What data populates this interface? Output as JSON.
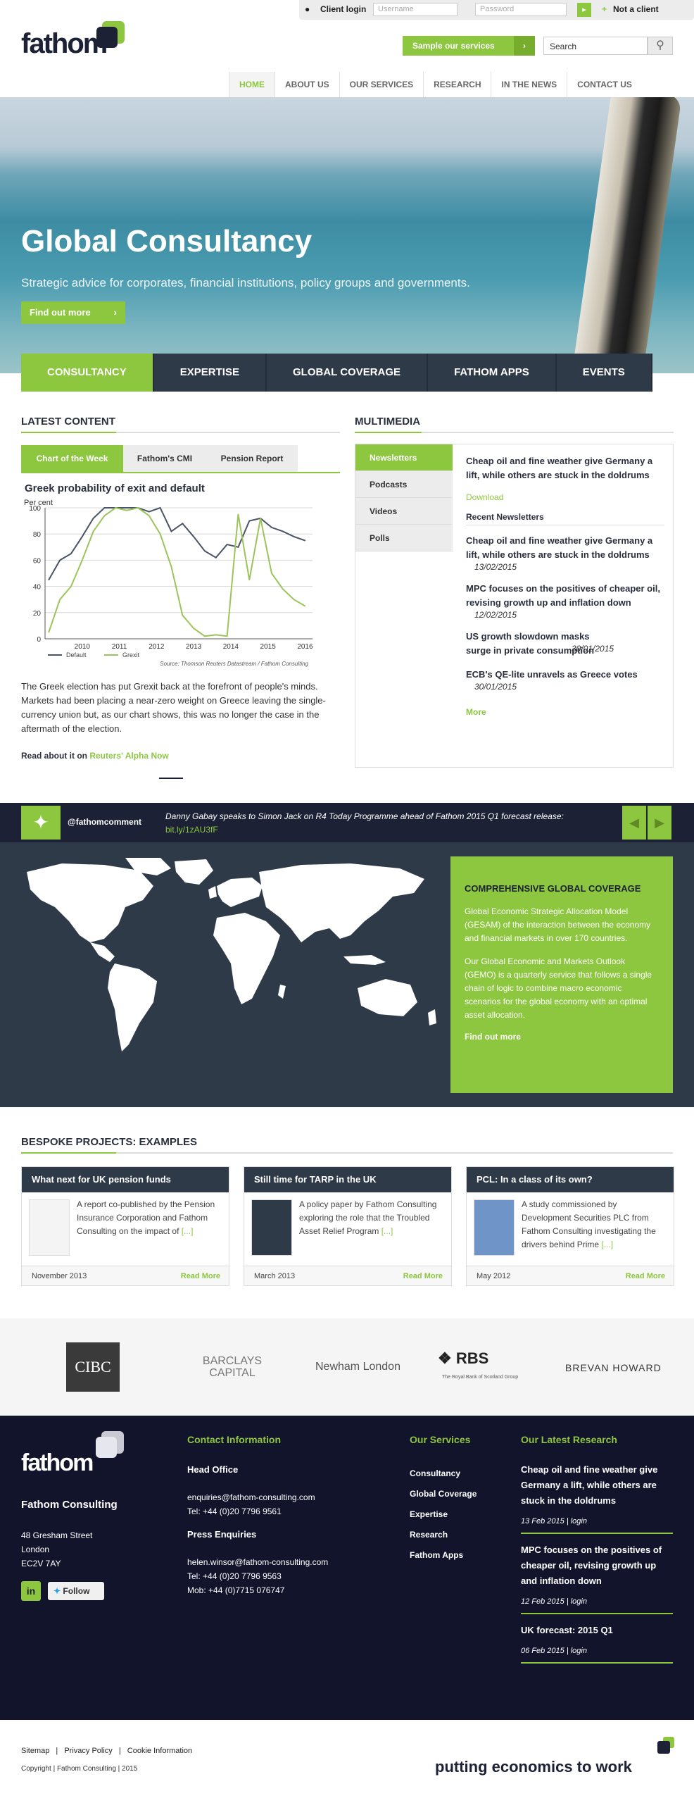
{
  "header": {
    "client_login": "Client login",
    "username_placeholder": "Username",
    "password_placeholder": "Password",
    "not_client": "Not a client",
    "logo": "fathom",
    "sample_button": "Sample our services",
    "search_value": "Search",
    "nav": [
      "HOME",
      "ABOUT US",
      "OUR SERVICES",
      "RESEARCH",
      "IN THE NEWS",
      "CONTACT US"
    ]
  },
  "hero": {
    "title": "Global Consultancy",
    "subtitle": "Strategic advice for corporates, financial institutions, policy groups and governments.",
    "button": "Find out more"
  },
  "tabs": [
    "CONSULTANCY",
    "EXPERTISE",
    "GLOBAL COVERAGE",
    "FATHOM APPS",
    "EVENTS"
  ],
  "latest": {
    "title": "LATEST CONTENT",
    "subtabs": [
      "Chart of the Week",
      "Fathom's CMI",
      "Pension Report"
    ],
    "chart_title": "Greek probability of exit and default",
    "body": "The Greek election has put Grexit back at the forefront of people's minds. Markets had been placing a near-zero weight on Greece leaving the single-currency union but, as our chart shows, this was no longer the case in the aftermath of the election.",
    "read_prefix": "Read about it on",
    "read_link": "Reuters' Alpha Now"
  },
  "chart_data": {
    "type": "line",
    "title": "Greek probability of exit and default",
    "ylabel": "Per cent",
    "ylim": [
      0,
      100
    ],
    "yticks": [
      0,
      20,
      40,
      60,
      80,
      100
    ],
    "xticks": [
      "2010",
      "2011",
      "2012",
      "2013",
      "2014",
      "2015",
      "2016"
    ],
    "x": [
      2009.6,
      2009.9,
      2010.2,
      2010.5,
      2010.8,
      2011.1,
      2011.4,
      2011.7,
      2012.0,
      2012.3,
      2012.6,
      2012.9,
      2013.2,
      2013.5,
      2013.8,
      2014.1,
      2014.4,
      2014.7,
      2015.0,
      2015.3,
      2015.6,
      2015.9,
      2016.2,
      2016.5
    ],
    "series": [
      {
        "name": "Default",
        "color": "#4a5468",
        "values": [
          45,
          60,
          65,
          78,
          92,
          100,
          100,
          100,
          100,
          97,
          100,
          82,
          88,
          78,
          67,
          62,
          72,
          70,
          90,
          92,
          85,
          82,
          78,
          75
        ]
      },
      {
        "name": "Grexit",
        "color": "#9bc45a",
        "values": [
          5,
          30,
          40,
          60,
          82,
          94,
          100,
          98,
          100,
          94,
          80,
          55,
          18,
          8,
          2,
          3,
          2,
          95,
          45,
          92,
          50,
          38,
          30,
          25
        ]
      }
    ],
    "source": "Source: Thomson Reuters Datastream / Fathom Consulting"
  },
  "multimedia": {
    "title": "MULTIMEDIA",
    "side": [
      "Newsletters",
      "Podcasts",
      "Videos",
      "Polls"
    ],
    "featured": "Cheap oil and fine weather give Germany a lift, while others are stuck in the doldrums",
    "download": "Download",
    "recent_title": "Recent Newsletters",
    "items": [
      {
        "title": "Cheap oil and fine weather give Germany a lift, while others are stuck in the doldrums",
        "date": "13/02/2015"
      },
      {
        "title": "MPC focuses on the positives of cheaper oil, revising growth up and inflation down",
        "date": "12/02/2015"
      },
      {
        "title": "US growth slowdown masks surge in private consumption",
        "date": "30/01/2015"
      },
      {
        "title": "ECB's QE-lite unravels as Greece votes",
        "date": "30/01/2015"
      }
    ],
    "more": "More"
  },
  "twitter": {
    "handle": "@fathomcomment",
    "text": "Danny Gabay speaks to Simon Jack on R4 Today Programme ahead of Fathom 2015 Q1 forecast release:",
    "link": "bit.ly/1zAU3fF"
  },
  "coverage": {
    "title": "COMPREHENSIVE GLOBAL COVERAGE",
    "p1": "Global Economic Strategic Allocation Model (GESAM) of the interaction between the economy and financial markets in over 170 countries.",
    "p2": "Our Global Economic and Markets Outlook (GEMO) is a quarterly service that follows a single chain of logic to combine macro economic scenarios for the global economy with an optimal asset allocation.",
    "link": "Find out more"
  },
  "bespoke": {
    "title": "BESPOKE PROJECTS: EXAMPLES",
    "read_more": "Read More",
    "cards": [
      {
        "title": "What next for UK pension funds",
        "text": "A report co-published by the Pension Insurance Corporation and Fathom Consulting on the impact of",
        "ellipsis": "[...]",
        "date": "November 2013"
      },
      {
        "title": "Still time for TARP in the UK",
        "text": "A policy paper by Fathom Consulting exploring the role that the Troubled Asset Relief Program",
        "ellipsis": "[...]",
        "date": "March 2013"
      },
      {
        "title": "PCL: In a class of its own?",
        "text": "A study commissioned by Development Securities PLC from Fathom Consulting investigating the drivers behind Prime",
        "ellipsis": "[...]",
        "date": "May 2012"
      }
    ]
  },
  "logos": [
    "CIBC",
    "BARCLAYS CAPITAL",
    "Newham London",
    "RBS",
    "The Royal Bank of Scotland Group",
    "BREVAN HOWARD"
  ],
  "footer": {
    "logo": "fathom",
    "company": "Fathom Consulting",
    "address": [
      "48 Gresham Street",
      "London",
      "EC2V 7AY"
    ],
    "follow": "Follow",
    "contact_title": "Contact Information",
    "head_office": "Head Office",
    "email1": "enquiries@fathom-consulting.com",
    "tel1": "Tel: +44 (0)20 7796 9561",
    "press": "Press Enquiries",
    "email2": "helen.winsor@fathom-consulting.com",
    "tel2": "Tel: +44 (0)20 7796 9563",
    "mob": "Mob: +44 (0)7715 076747",
    "services_title": "Our Services",
    "services": [
      "Consultancy",
      "Global Coverage",
      "Expertise",
      "Research",
      "Fathom Apps"
    ],
    "research_title": "Our Latest Research",
    "research": [
      {
        "title": "Cheap oil and fine weather give Germany a lift, while others are stuck in the doldrums",
        "meta": "13 Feb 2015 | login"
      },
      {
        "title": "MPC focuses on the positives of cheaper oil, revising growth up and inflation down",
        "meta": "12 Feb 2015 | login"
      },
      {
        "title": "UK forecast: 2015 Q1",
        "meta": "06 Feb 2015 | login"
      }
    ]
  },
  "bottom": {
    "links": [
      "Sitemap",
      "Privacy Policy",
      "Cookie Information"
    ],
    "copyright": "Copyright | Fathom Consulting | 2015",
    "tagline": "putting economics to work"
  },
  "colors": {
    "accent": "#8dc63f",
    "navy": "#1c2136",
    "slate": "#2f3a48"
  }
}
